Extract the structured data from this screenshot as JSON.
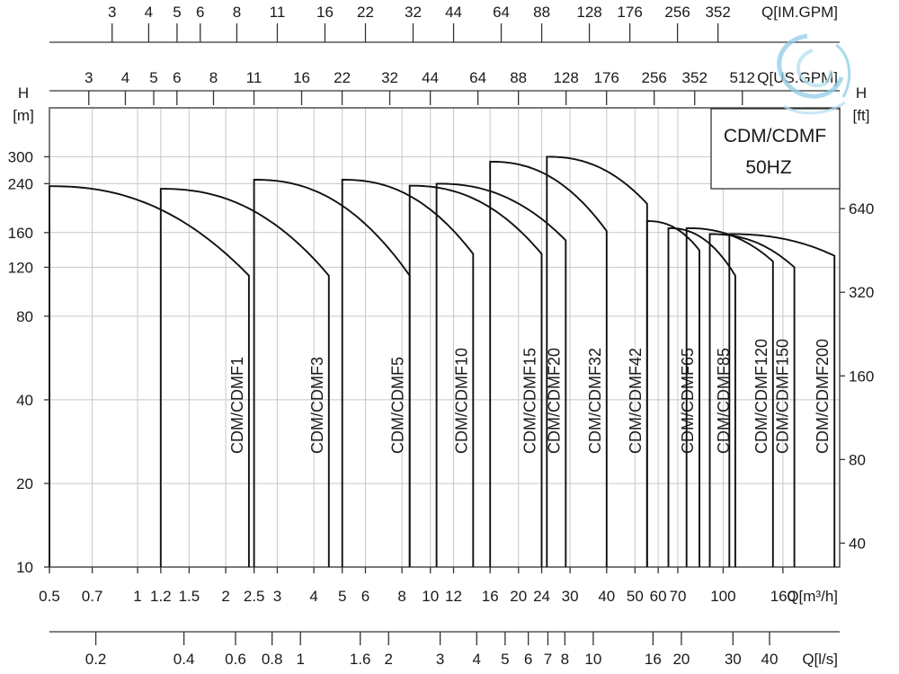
{
  "chart_data": {
    "type": "line",
    "title": "CDM/CDMF",
    "subtitle": "50HZ",
    "x_scale": "log",
    "y_scale": "log",
    "xlim": [
      0.5,
      250
    ],
    "ylim": [
      10,
      450
    ],
    "grid": true,
    "y_left": {
      "label_symbol": "H",
      "label_unit": "[m]",
      "ticks": [
        10,
        20,
        40,
        80,
        120,
        160,
        240,
        300
      ]
    },
    "y_right": {
      "label_symbol": "H",
      "label_unit": "[ft]",
      "ticks": [
        40,
        80,
        160,
        320,
        640
      ],
      "ft_per_m": 3.28
    },
    "x_axes": {
      "m3h": {
        "label": "Q[m³/h]",
        "ticks": [
          0.5,
          0.7,
          1,
          1.2,
          1.5,
          2,
          2.5,
          3,
          4,
          5,
          6,
          8,
          10,
          12,
          16,
          20,
          24,
          30,
          40,
          50,
          60,
          70,
          100,
          160
        ],
        "tick_labels": [
          "0.5",
          "0.7",
          "1",
          "1.2",
          "1.5",
          "2",
          "2.5",
          "3",
          "4",
          "5",
          "6",
          "8",
          "10",
          "12",
          "16",
          "20",
          "24",
          "30",
          "40",
          "50",
          "60",
          "70",
          "100",
          "160"
        ]
      },
      "ls": {
        "label": "Q[l/s]",
        "ticks": [
          0.2,
          0.4,
          0.6,
          0.8,
          1,
          1.6,
          2,
          3,
          4,
          5,
          6,
          7,
          8,
          10,
          16,
          20,
          30,
          40
        ],
        "tick_labels": [
          "0.2",
          "0.4",
          "0.6",
          "0.8",
          "1",
          "1.6",
          "2",
          "3",
          "4",
          "5",
          "6",
          "7",
          "8",
          "10",
          "16",
          "20",
          "30",
          "40"
        ]
      },
      "us_gpm": {
        "label": "Q[US.GPM]",
        "ticks": [
          3,
          4,
          5,
          6,
          8,
          11,
          16,
          22,
          32,
          44,
          64,
          88,
          128,
          176,
          256,
          352,
          512
        ],
        "tick_labels": [
          "3",
          "4",
          "5",
          "6",
          "8",
          "11",
          "16",
          "22",
          "32",
          "44",
          "64",
          "88",
          "128",
          "176",
          "256",
          "352",
          "512"
        ]
      },
      "im_gpm": {
        "label": "Q[IM.GPM]",
        "ticks": [
          3,
          4,
          5,
          6,
          8,
          11,
          16,
          22,
          32,
          44,
          64,
          88,
          128,
          176,
          256,
          352
        ],
        "tick_labels": [
          "3",
          "4",
          "5",
          "6",
          "8",
          "11",
          "16",
          "22",
          "32",
          "44",
          "64",
          "88",
          "128",
          "176",
          "256",
          "352"
        ]
      }
    },
    "series": [
      {
        "name": "CDM/CDMF1",
        "q_min": 0.5,
        "q_max": 2.4,
        "h_top": 235,
        "h_end": 112
      },
      {
        "name": "CDM/CDMF3",
        "q_min": 1.2,
        "q_max": 4.5,
        "h_top": 230,
        "h_end": 112
      },
      {
        "name": "CDM/CDMF5",
        "q_min": 2.5,
        "q_max": 8.5,
        "h_top": 248,
        "h_end": 112
      },
      {
        "name": "CDM/CDMF10",
        "q_min": 5,
        "q_max": 14,
        "h_top": 248,
        "h_end": 134
      },
      {
        "name": "CDM/CDMF15",
        "q_min": 8.5,
        "q_max": 24,
        "h_top": 236,
        "h_end": 134
      },
      {
        "name": "CDM/CDMF20",
        "q_min": 10.5,
        "q_max": 29,
        "h_top": 240,
        "h_end": 150
      },
      {
        "name": "CDM/CDMF32",
        "q_min": 16,
        "q_max": 40,
        "h_top": 288,
        "h_end": 162
      },
      {
        "name": "CDM/CDMF42",
        "q_min": 25,
        "q_max": 55,
        "h_top": 300,
        "h_end": 203
      },
      {
        "name": "CDM/CDMF65",
        "q_min": 55,
        "q_max": 83,
        "h_top": 176,
        "h_end": 138
      },
      {
        "name": "CDM/CDMF85",
        "q_min": 65,
        "q_max": 110,
        "h_top": 166,
        "h_end": 112
      },
      {
        "name": "CDM/CDMF120",
        "q_min": 75,
        "q_max": 148,
        "h_top": 166,
        "h_end": 126
      },
      {
        "name": "CDM/CDMF150",
        "q_min": 90,
        "q_max": 175,
        "h_top": 158,
        "h_end": 120
      },
      {
        "name": "CDM/CDMF200",
        "q_min": 105,
        "q_max": 240,
        "h_top": 158,
        "h_end": 132
      }
    ]
  },
  "colors": {
    "curve": "#111111",
    "grid": "#c8c8c8",
    "axis": "#333333",
    "logo": "#8fcde8"
  }
}
